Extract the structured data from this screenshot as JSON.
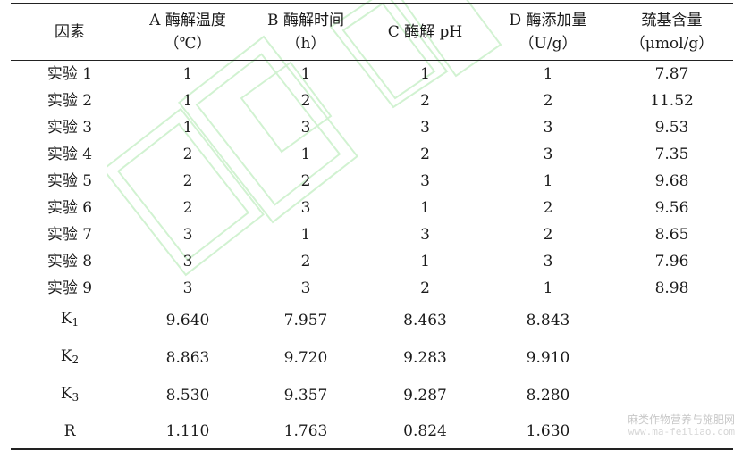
{
  "headers": [
    {
      "line1": "因素",
      "line2": ""
    },
    {
      "line1": "A  酶解温度",
      "line2": "（℃）"
    },
    {
      "line1": "B  酶解时间",
      "line2": "（h）"
    },
    {
      "line1": "C  酶解 pH",
      "line2": ""
    },
    {
      "line1": "D  酶添加量",
      "line2": "（U/g）"
    },
    {
      "line1": "巯基含量",
      "line2": "（μmol/g）"
    }
  ],
  "experiments": [
    {
      "label": "实验 1",
      "A": "1",
      "B": "1",
      "C": "1",
      "D": "1",
      "thiol": "7.87"
    },
    {
      "label": "实验 2",
      "A": "1",
      "B": "2",
      "C": "2",
      "D": "2",
      "thiol": "11.52"
    },
    {
      "label": "实验 3",
      "A": "1",
      "B": "3",
      "C": "3",
      "D": "3",
      "thiol": "9.53"
    },
    {
      "label": "实验 4",
      "A": "2",
      "B": "1",
      "C": "2",
      "D": "3",
      "thiol": "7.35"
    },
    {
      "label": "实验 5",
      "A": "2",
      "B": "2",
      "C": "3",
      "D": "1",
      "thiol": "9.68"
    },
    {
      "label": "实验 6",
      "A": "2",
      "B": "3",
      "C": "1",
      "D": "2",
      "thiol": "9.56"
    },
    {
      "label": "实验 7",
      "A": "3",
      "B": "1",
      "C": "3",
      "D": "2",
      "thiol": "8.65"
    },
    {
      "label": "实验 8",
      "A": "3",
      "B": "2",
      "C": "1",
      "D": "3",
      "thiol": "7.96"
    },
    {
      "label": "实验 9",
      "A": "3",
      "B": "3",
      "C": "2",
      "D": "1",
      "thiol": "8.98"
    }
  ],
  "summary": [
    {
      "label": "K",
      "sub": "1",
      "A": "9.640",
      "B": "7.957",
      "C": "8.463",
      "D": "8.843"
    },
    {
      "label": "K",
      "sub": "2",
      "A": "8.863",
      "B": "9.720",
      "C": "9.283",
      "D": "9.910"
    },
    {
      "label": "K",
      "sub": "3",
      "A": "8.530",
      "B": "9.357",
      "C": "9.287",
      "D": "8.280"
    },
    {
      "label": "R",
      "sub": "",
      "A": "1.110",
      "B": "1.763",
      "C": "0.824",
      "D": "1.630"
    }
  ],
  "watermark": {
    "line1": "麻类作物营养与施肥网",
    "line2": "www.ma-feiliao.com",
    "seal_color": "#9be39b"
  }
}
